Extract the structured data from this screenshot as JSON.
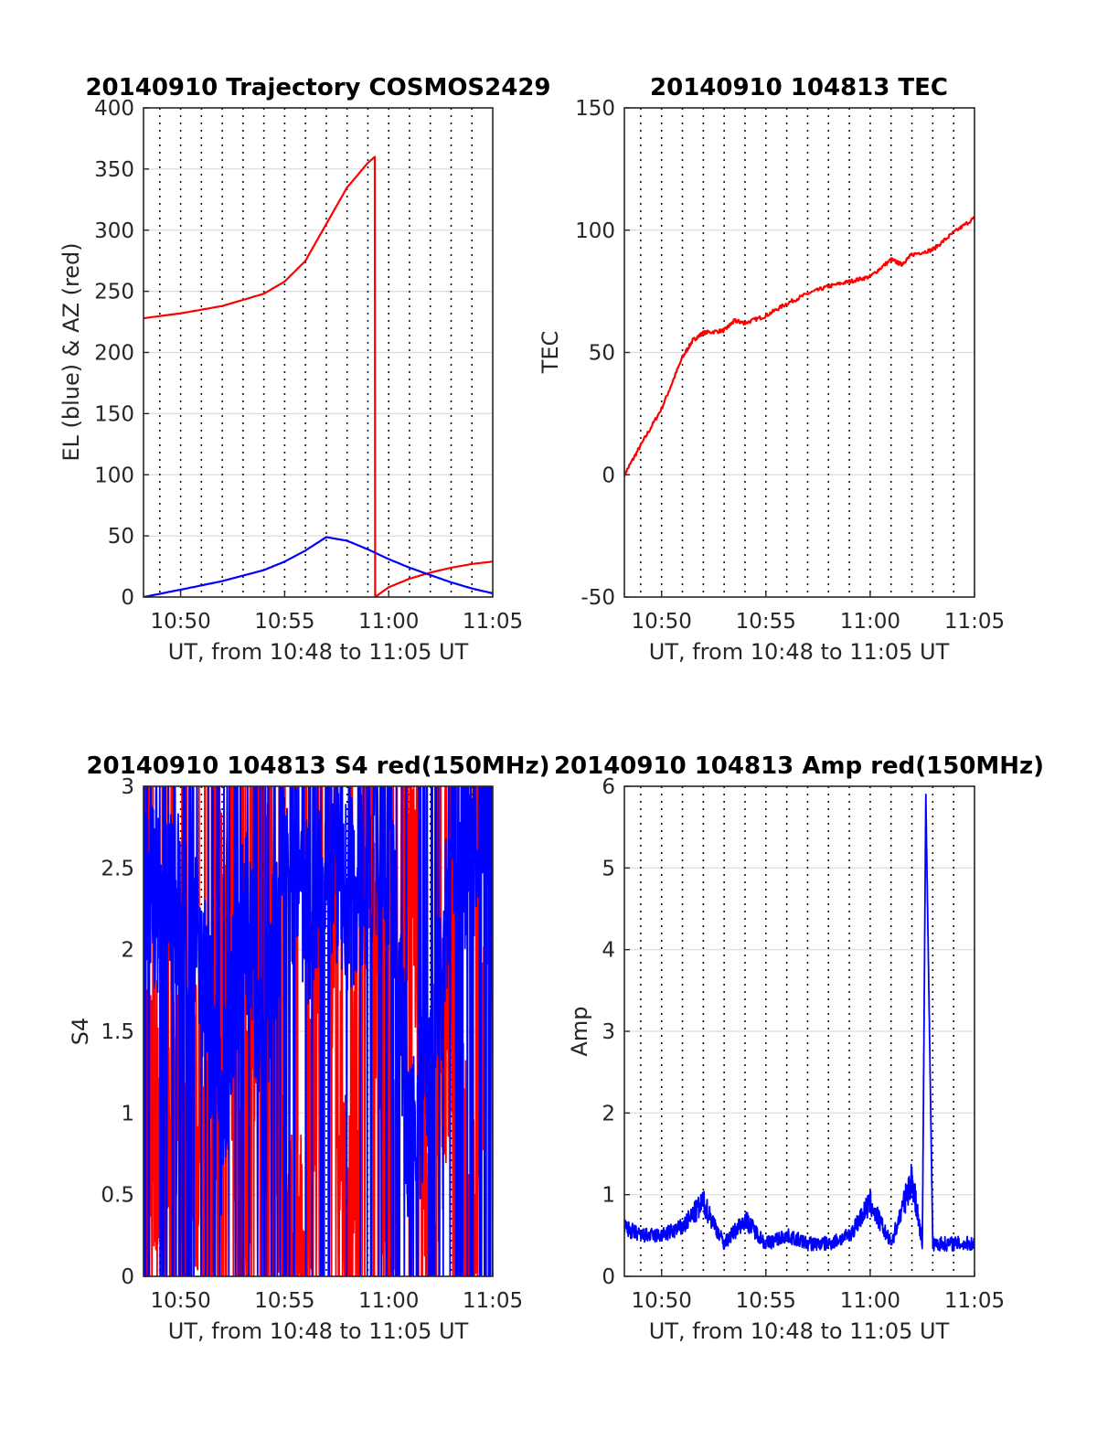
{
  "chart_data": [
    {
      "type": "line",
      "title": "20140910 Trajectory COSMOS2429",
      "xlabel": "UT, from 10:48 to 11:05 UT",
      "ylabel": "EL (blue) & AZ (red)",
      "xlim": [
        "10:48:13",
        "11:05"
      ],
      "ylim": [
        0,
        400
      ],
      "yticks": [
        "0",
        "50",
        "100",
        "150",
        "200",
        "250",
        "300",
        "350",
        "400"
      ],
      "xtick_labels": [
        "10:50",
        "10:55",
        "11:00",
        "11:05"
      ],
      "grid": true,
      "series": [
        {
          "color": "#ff0000",
          "x": [
            "10:48:13",
            "10:50",
            "10:52",
            "10:54",
            "10:55",
            "10:56",
            "10:57",
            "10:58",
            "10:59",
            "10:59:20",
            "10:59:21",
            "11:00",
            "11:01",
            "11:02",
            "11:03",
            "11:04",
            "11:05"
          ],
          "values": [
            228,
            232,
            238,
            248,
            258,
            275,
            305,
            335,
            355,
            360,
            0,
            8,
            15,
            20,
            24,
            27,
            29
          ]
        },
        {
          "color": "#0000ff",
          "x": [
            "10:48:13",
            "10:50",
            "10:52",
            "10:54",
            "10:55",
            "10:56",
            "10:57",
            "10:58",
            "10:59",
            "11:00",
            "11:01",
            "11:02",
            "11:03",
            "11:04",
            "11:05"
          ],
          "values": [
            0,
            6,
            13,
            22,
            29,
            38,
            49,
            46,
            39,
            31,
            24,
            18,
            12,
            7,
            3
          ]
        }
      ]
    },
    {
      "type": "line",
      "title": "20140910 104813 TEC",
      "xlabel": "UT, from 10:48 to 11:05 UT",
      "ylabel": "TEC",
      "xlim": [
        "10:48:13",
        "11:05"
      ],
      "ylim": [
        -50,
        150
      ],
      "yticks": [
        "-50",
        "0",
        "50",
        "100",
        "150"
      ],
      "xtick_labels": [
        "10:50",
        "10:55",
        "11:00",
        "11:05"
      ],
      "grid": true,
      "series": [
        {
          "color": "#ff0000",
          "x": [
            "10:48:13",
            "10:49",
            "10:50",
            "10:51",
            "10:51:30",
            "10:52",
            "10:53",
            "10:53:30",
            "10:54",
            "10:55",
            "10:56",
            "10:57",
            "10:58",
            "10:59",
            "11:00",
            "11:01",
            "11:01:30",
            "11:02",
            "11:03",
            "11:04",
            "11:05"
          ],
          "values": [
            0,
            12,
            27,
            48,
            55,
            58,
            59,
            63,
            62,
            65,
            70,
            74,
            77,
            79,
            81,
            88,
            86,
            90,
            92,
            99,
            105
          ]
        }
      ]
    },
    {
      "type": "line",
      "title": "20140910 104813 S4 red(150MHz)",
      "xlabel": "UT, from 10:48 to 11:05 UT",
      "ylabel": "S4",
      "xlim": [
        "10:48:13",
        "11:05"
      ],
      "ylim": [
        0,
        3
      ],
      "yticks": [
        "0",
        "0.5",
        "1",
        "1.5",
        "2",
        "2.5",
        "3"
      ],
      "xtick_labels": [
        "10:50",
        "10:55",
        "11:00",
        "11:05"
      ],
      "grid": true,
      "series": [
        {
          "color": "#ff0000",
          "x": [
            "10:48:13",
            "10:49",
            "10:50",
            "10:51",
            "10:51:30",
            "10:52",
            "10:53",
            "10:54",
            "10:55",
            "10:56",
            "10:57",
            "10:58",
            "10:59",
            "11:00",
            "11:01",
            "11:02",
            "11:03",
            "11:04",
            "11:05"
          ],
          "values": [
            1.1,
            1.0,
            1.1,
            0.9,
            0.0,
            2.5,
            0.0,
            3.0,
            0.0,
            0.0,
            3.0,
            0.0,
            3.0,
            0.0,
            3.0,
            0.0,
            2.0,
            0.0,
            3.0
          ]
        },
        {
          "color": "#0000ff",
          "x": [
            "10:48:13",
            "10:49",
            "10:50",
            "10:51",
            "10:52",
            "10:53",
            "10:54",
            "10:55",
            "10:56",
            "10:57",
            "10:58",
            "10:59",
            "11:00",
            "11:01",
            "11:02",
            "11:03",
            "11:04",
            "11:05"
          ],
          "values": [
            2.6,
            2.2,
            2.4,
            2.0,
            0.9,
            2.3,
            1.4,
            2.7,
            2.2,
            2.6,
            2.3,
            2.5,
            2.6,
            0.8,
            1.2,
            2.5,
            2.6,
            2.8
          ]
        }
      ]
    },
    {
      "type": "line",
      "title": "20140910 104813 Amp red(150MHz)",
      "xlabel": "UT, from 10:48 to 11:05 UT",
      "ylabel": "Amp",
      "xlim": [
        "10:48:13",
        "11:05"
      ],
      "ylim": [
        0,
        6
      ],
      "yticks": [
        "0",
        "1",
        "2",
        "3",
        "4",
        "5",
        "6"
      ],
      "xtick_labels": [
        "10:50",
        "10:55",
        "11:00",
        "11:05"
      ],
      "grid": true,
      "series": [
        {
          "color": "#0000ff",
          "x": [
            "10:48:13",
            "10:49",
            "10:50",
            "10:51",
            "10:52",
            "10:53",
            "10:54",
            "10:55",
            "10:56",
            "10:57",
            "10:58",
            "10:59",
            "11:00",
            "11:01",
            "11:02",
            "11:02:30",
            "11:02:40",
            "11:03",
            "11:04",
            "11:05"
          ],
          "values": [
            0.6,
            0.5,
            0.5,
            0.6,
            0.9,
            0.4,
            0.7,
            0.4,
            0.5,
            0.4,
            0.4,
            0.5,
            0.9,
            0.4,
            1.2,
            0.4,
            5.9,
            0.4,
            0.4,
            0.4
          ]
        }
      ]
    }
  ]
}
